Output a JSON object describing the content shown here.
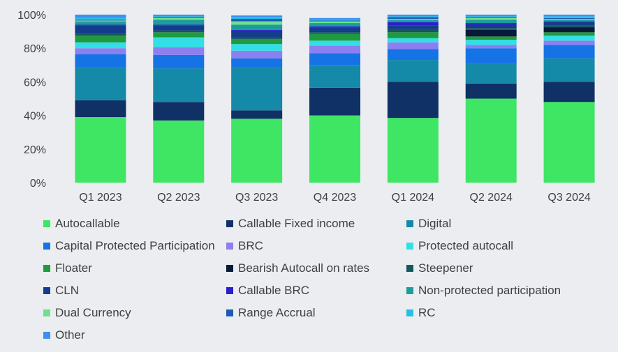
{
  "chart_data": {
    "type": "bar",
    "stacked": true,
    "categories": [
      "Q1 2023",
      "Q2 2023",
      "Q3 2023",
      "Q4 2023",
      "Q1 2024",
      "Q2 2024",
      "Q3 2024"
    ],
    "ylim": [
      0,
      100
    ],
    "yticks": [
      "0%",
      "20%",
      "40%",
      "60%",
      "80%",
      "100%"
    ],
    "grid": false,
    "legend_position": "bottom",
    "series": [
      {
        "name": "Autocallable",
        "color": "#3ee664",
        "values": [
          39,
          37,
          38,
          40,
          38.5,
          50,
          48
        ]
      },
      {
        "name": "Callable Fixed income",
        "color": "#0f3166",
        "values": [
          10,
          11,
          5,
          16.5,
          21.5,
          9,
          12
        ]
      },
      {
        "name": "Digital",
        "color": "#148aa8",
        "values": [
          19.5,
          20,
          25.5,
          13.5,
          13,
          12,
          14
        ]
      },
      {
        "name": "Capital Protected Participation",
        "color": "#1673e6",
        "values": [
          8,
          8,
          5.5,
          7,
          6.5,
          9,
          8
        ]
      },
      {
        "name": "BRC",
        "color": "#8c7ff0",
        "values": [
          3.5,
          4.5,
          4.5,
          4.5,
          4,
          2,
          2.5
        ]
      },
      {
        "name": "Protected autocall",
        "color": "#33dfe6",
        "values": [
          3.5,
          6,
          4,
          3,
          2.5,
          3,
          3
        ]
      },
      {
        "name": "Floater",
        "color": "#209a3e",
        "values": [
          4,
          3,
          3,
          4,
          3.5,
          2,
          2
        ]
      },
      {
        "name": "Bearish Autocall on rates",
        "color": "#09193a",
        "values": [
          0,
          0,
          0,
          0,
          0,
          4,
          3
        ]
      },
      {
        "name": "Steepener",
        "color": "#14575e",
        "values": [
          1,
          1,
          1,
          1,
          2,
          1,
          1
        ]
      },
      {
        "name": "CLN",
        "color": "#153c8c",
        "values": [
          5,
          3,
          4,
          3,
          2,
          2,
          2
        ]
      },
      {
        "name": "Callable BRC",
        "color": "#2a1ecf",
        "values": [
          0.5,
          0.5,
          0.5,
          0.5,
          2,
          1,
          0.5
        ]
      },
      {
        "name": "Non-protected participation",
        "color": "#1e9c9c",
        "values": [
          2,
          3,
          3,
          2,
          1.5,
          2,
          1
        ]
      },
      {
        "name": "Dual Currency",
        "color": "#6fe08f",
        "values": [
          0.5,
          1,
          2,
          1,
          0.5,
          1,
          0.5
        ]
      },
      {
        "name": "Range Accrual",
        "color": "#1e5ab4",
        "values": [
          0.5,
          0.5,
          1.5,
          0.5,
          1,
          0.5,
          0.5
        ]
      },
      {
        "name": "RC",
        "color": "#27c0e4",
        "values": [
          1,
          0.5,
          1,
          0.5,
          0.5,
          0.5,
          1
        ]
      },
      {
        "name": "Other",
        "color": "#3d8ff0",
        "values": [
          2,
          1,
          1,
          1,
          1,
          1,
          1
        ]
      }
    ]
  }
}
